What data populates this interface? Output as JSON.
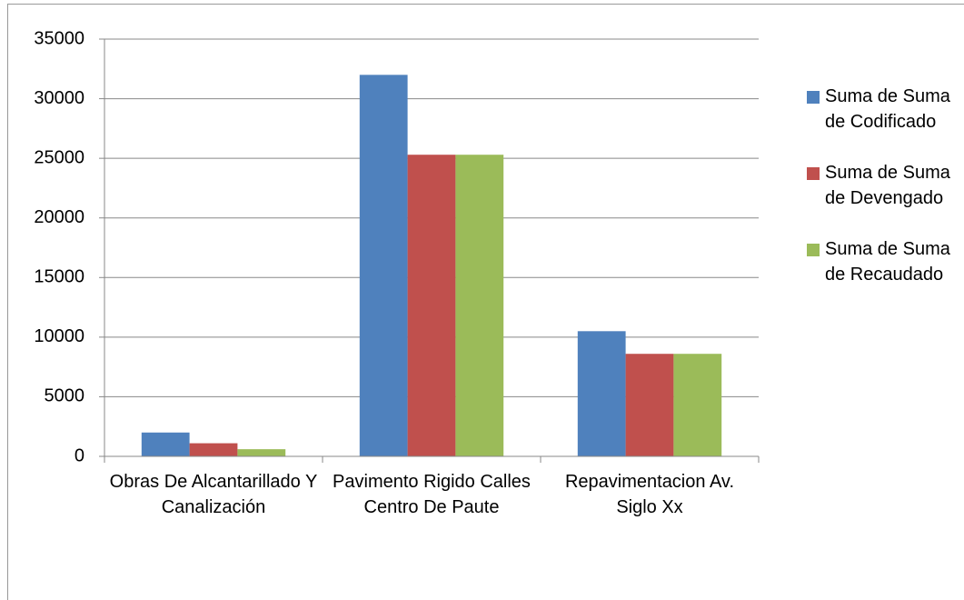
{
  "chart_data": {
    "type": "bar",
    "categories": [
      "Obras De Alcantarillado Y Canalización",
      "Pavimento Rigido Calles Centro De Paute",
      "Repavimentacion Av. Siglo Xx"
    ],
    "series": [
      {
        "name": "Suma de Suma de Codificado",
        "color": "#4f81bd",
        "values": [
          2000,
          32000,
          10500
        ]
      },
      {
        "name": "Suma de Suma de Devengado",
        "color": "#c0504d",
        "values": [
          1100,
          25300,
          8600
        ]
      },
      {
        "name": "Suma de Suma de Recaudado",
        "color": "#9bbb59",
        "values": [
          600,
          25300,
          8600
        ]
      }
    ],
    "ylim": [
      0,
      35000
    ],
    "yticks": [
      0,
      5000,
      10000,
      15000,
      20000,
      25000,
      30000,
      35000
    ],
    "grid": true,
    "legend": "right"
  }
}
